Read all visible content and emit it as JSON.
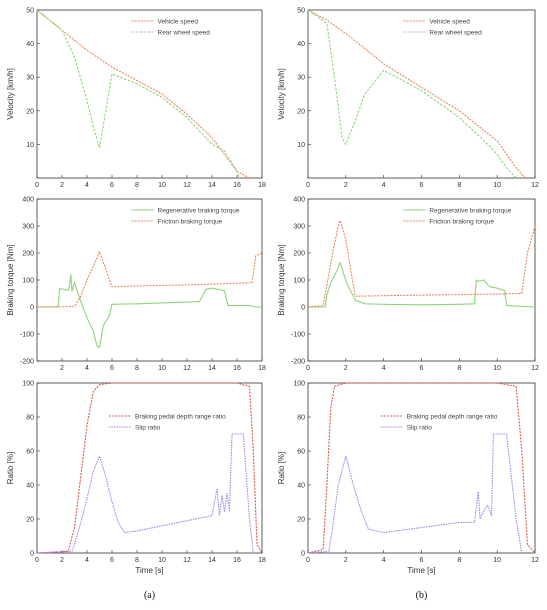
{
  "colors": {
    "orange": "#e8865c",
    "green": "#8ed47a",
    "red": "#e0554c",
    "purple": "#9e86ea"
  },
  "chart_data": [
    {
      "type": "line",
      "column": 0,
      "row": 0,
      "ylabel": "Velocity [km/h]",
      "xlabel": "",
      "xlim": [
        0,
        18
      ],
      "ylim": [
        0,
        50
      ],
      "xticks": [
        0,
        2,
        4,
        6,
        8,
        10,
        12,
        14,
        16,
        18
      ],
      "yticks": [
        10,
        20,
        30,
        40,
        50
      ],
      "legend_position": "top-right",
      "series": [
        {
          "name": "Vehicle speed",
          "color": "orange",
          "dash": "2,1.2",
          "x": [
            0,
            2,
            4,
            6,
            8,
            10,
            12,
            14,
            15,
            16,
            17
          ],
          "y": [
            50,
            44,
            38,
            33,
            29,
            25,
            19,
            12,
            7,
            2,
            0
          ]
        },
        {
          "name": "Rear wheel speed",
          "color": "green",
          "dash": "2.5,1.5",
          "x": [
            0,
            2,
            3,
            4,
            4.6,
            5,
            5.5,
            6,
            8,
            10,
            12,
            13,
            14,
            14.5,
            15,
            15.5,
            16,
            16.2
          ],
          "y": [
            50,
            44,
            36,
            23,
            14,
            9,
            20,
            31,
            28,
            24,
            18,
            14,
            10,
            9,
            8,
            5,
            2,
            0
          ]
        }
      ]
    },
    {
      "type": "line",
      "column": 1,
      "row": 0,
      "ylabel": "Velocity [km/h]",
      "xlabel": "",
      "xlim": [
        0,
        12
      ],
      "ylim": [
        0,
        50
      ],
      "xticks": [
        0,
        2,
        4,
        6,
        8,
        10,
        12
      ],
      "yticks": [
        10,
        20,
        30,
        40,
        50
      ],
      "legend_position": "top-right",
      "series": [
        {
          "name": "Vehicle speed",
          "color": "orange",
          "dash": "2,1.2",
          "x": [
            0,
            1,
            2,
            4,
            6,
            8,
            10,
            11,
            11.5
          ],
          "y": [
            50,
            47,
            43,
            34,
            27,
            20,
            11,
            3,
            0
          ]
        },
        {
          "name": "Rear wheel speed",
          "color": "green",
          "dash": "2.5,1.5",
          "x": [
            0,
            1,
            1.4,
            1.8,
            2,
            2.5,
            3,
            4,
            6,
            8,
            9.5,
            10,
            10.5,
            11
          ],
          "y": [
            50,
            46,
            30,
            12,
            10,
            17,
            25,
            32,
            26,
            18,
            10,
            7,
            3,
            0
          ]
        }
      ]
    },
    {
      "type": "line",
      "column": 0,
      "row": 1,
      "ylabel": "Braking torque [Nm]",
      "xlabel": "",
      "xlim": [
        0,
        18
      ],
      "ylim": [
        -200,
        400
      ],
      "xticks": [
        2,
        4,
        6,
        8,
        10,
        12,
        14,
        16,
        18
      ],
      "yticks": [
        -200,
        -100,
        0,
        100,
        200,
        300,
        400
      ],
      "legend_position": "top-right",
      "series": [
        {
          "name": "Regenerative braking torque",
          "color": "green",
          "dash": "",
          "x": [
            0,
            1.7,
            1.8,
            2.5,
            2.6,
            2.7,
            2.8,
            3,
            3.5,
            4,
            4.5,
            4.8,
            5,
            5.3,
            5.8,
            6,
            8,
            10,
            12,
            13,
            13.5,
            14,
            15,
            15.2,
            15.3,
            16,
            17,
            17.5,
            18
          ],
          "y": [
            0,
            0,
            68,
            62,
            80,
            120,
            60,
            90,
            20,
            -40,
            -90,
            -145,
            -150,
            -70,
            -30,
            10,
            12,
            15,
            18,
            20,
            65,
            70,
            60,
            20,
            5,
            5,
            5,
            0,
            0
          ]
        },
        {
          "name": "Friction braking torque",
          "color": "orange",
          "dash": "2,1.2",
          "x": [
            0,
            3,
            3.5,
            4,
            4.5,
            5,
            5.5,
            6,
            8,
            10,
            12,
            14,
            16,
            17.2,
            17.5,
            18
          ],
          "y": [
            0,
            2,
            40,
            100,
            150,
            205,
            140,
            75,
            78,
            80,
            82,
            85,
            88,
            90,
            190,
            200
          ]
        }
      ]
    },
    {
      "type": "line",
      "column": 1,
      "row": 1,
      "ylabel": "Braking torque [Nm]",
      "xlabel": "",
      "xlim": [
        0,
        12
      ],
      "ylim": [
        -200,
        400
      ],
      "xticks": [
        0,
        2,
        4,
        6,
        8,
        10,
        12
      ],
      "yticks": [
        -200,
        -100,
        0,
        100,
        200,
        300,
        400
      ],
      "legend_position": "top-right",
      "series": [
        {
          "name": "Regenerative braking torque",
          "color": "green",
          "dash": "",
          "x": [
            0,
            0.9,
            1.0,
            1.2,
            1.5,
            1.7,
            1.9,
            2.1,
            2.4,
            2.5,
            3,
            4,
            6,
            8,
            8.8,
            8.9,
            9.0,
            9.3,
            9.6,
            10,
            10.4,
            10.5,
            12
          ],
          "y": [
            0,
            0,
            45,
            90,
            130,
            165,
            120,
            80,
            40,
            25,
            12,
            10,
            8,
            10,
            12,
            100,
            95,
            100,
            75,
            70,
            60,
            5,
            0
          ]
        },
        {
          "name": "Friction braking torque",
          "color": "orange",
          "dash": "2,1.2",
          "x": [
            0,
            0.8,
            1.0,
            1.3,
            1.6,
            1.7,
            2.0,
            2.3,
            2.5,
            4,
            6,
            8,
            10,
            11.3,
            11.6,
            12
          ],
          "y": [
            0,
            5,
            80,
            200,
            300,
            320,
            250,
            120,
            40,
            42,
            44,
            46,
            48,
            50,
            200,
            300
          ]
        }
      ]
    },
    {
      "type": "line",
      "column": 0,
      "row": 2,
      "ylabel": "Ratio [%]",
      "xlabel": "Time [s]",
      "xlim": [
        0,
        18
      ],
      "ylim": [
        0,
        100
      ],
      "xticks": [
        0,
        2,
        4,
        6,
        8,
        10,
        12,
        14,
        16,
        18
      ],
      "yticks": [
        0,
        20,
        40,
        60,
        80,
        100
      ],
      "legend_position": "middle-right",
      "series": [
        {
          "name": "Braking pedal depth range ratio",
          "color": "red",
          "dash": "2,1.2",
          "x": [
            0,
            2.5,
            3,
            3.5,
            4,
            4.5,
            5,
            6,
            8,
            10,
            12,
            14,
            16,
            17,
            17.3,
            17.6,
            18
          ],
          "y": [
            0,
            1,
            15,
            45,
            75,
            95,
            99,
            100,
            100,
            100,
            100,
            100,
            100,
            98,
            60,
            5,
            0
          ]
        },
        {
          "name": "Slip ratio",
          "color": "purple",
          "dash": "1.5,1",
          "x": [
            0,
            2.8,
            3,
            3.5,
            4,
            4.5,
            5,
            5.5,
            6,
            6.5,
            7,
            8,
            10,
            12,
            14,
            14.4,
            14.6,
            14.8,
            15,
            15.2,
            15.4,
            15.6,
            16,
            16.5,
            17,
            17.3
          ],
          "y": [
            0,
            1,
            5,
            18,
            32,
            48,
            57,
            45,
            30,
            18,
            12,
            13,
            16,
            19,
            22,
            38,
            22,
            34,
            24,
            35,
            25,
            70,
            70,
            70,
            20,
            0
          ]
        }
      ]
    },
    {
      "type": "line",
      "column": 1,
      "row": 2,
      "ylabel": "Ratio [%]",
      "xlabel": "Time [s]",
      "xlim": [
        0,
        12
      ],
      "ylim": [
        0,
        100
      ],
      "xticks": [
        0,
        2,
        4,
        6,
        8,
        10,
        12
      ],
      "yticks": [
        0,
        20,
        40,
        60,
        80,
        100
      ],
      "legend_position": "middle-right",
      "series": [
        {
          "name": "Braking pedal depth range ratio",
          "color": "red",
          "dash": "2,1.2",
          "x": [
            0,
            0.8,
            1.0,
            1.2,
            1.4,
            2,
            4,
            6,
            8,
            10,
            11,
            11.3,
            11.6,
            12
          ],
          "y": [
            0,
            2,
            40,
            85,
            98,
            100,
            100,
            100,
            100,
            100,
            98,
            60,
            5,
            0
          ]
        },
        {
          "name": "Slip ratio",
          "color": "purple",
          "dash": "1.5,1",
          "x": [
            0,
            1.1,
            1.3,
            1.6,
            2.0,
            2.4,
            2.8,
            3.2,
            4,
            6,
            8,
            8.8,
            9.0,
            9.1,
            9.3,
            9.5,
            9.7,
            9.8,
            10,
            10.5,
            11,
            11.3
          ],
          "y": [
            0,
            1,
            15,
            40,
            57,
            40,
            25,
            14,
            12,
            15,
            18,
            18,
            36,
            20,
            25,
            28,
            22,
            70,
            70,
            70,
            20,
            0
          ]
        }
      ]
    }
  ],
  "captions": [
    "(a)",
    "(b)"
  ]
}
